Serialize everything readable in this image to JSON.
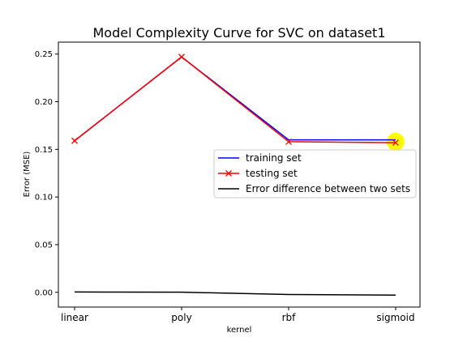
{
  "chart_data": {
    "type": "line",
    "title": "Model Complexity Curve for SVC on dataset1",
    "xlabel": "kernel",
    "ylabel": "Error (MSE)",
    "categories": [
      "linear",
      "poly",
      "rbf",
      "sigmoid"
    ],
    "ylim": [
      -0.0155,
      0.2625
    ],
    "yticks": [
      0.0,
      0.05,
      0.1,
      0.15,
      0.2,
      0.25
    ],
    "ytick_labels": [
      "0.00",
      "0.05",
      "0.10",
      "0.15",
      "0.20",
      "0.25"
    ],
    "grid": false,
    "legend_position": "center-right",
    "series": [
      {
        "name": "training set",
        "values": [
          0.159,
          0.247,
          0.16,
          0.16
        ],
        "color": "#0000ff",
        "marker": "none"
      },
      {
        "name": "testing set",
        "values": [
          0.159,
          0.247,
          0.158,
          0.157
        ],
        "color": "#ff0000",
        "marker": "x"
      },
      {
        "name": "Error difference between two sets",
        "values": [
          0.0003,
          0.0001,
          -0.0023,
          -0.003
        ],
        "color": "#000000",
        "marker": "none"
      }
    ],
    "highlight": {
      "category": "sigmoid",
      "value": 0.158,
      "color": "#ffff00"
    }
  }
}
